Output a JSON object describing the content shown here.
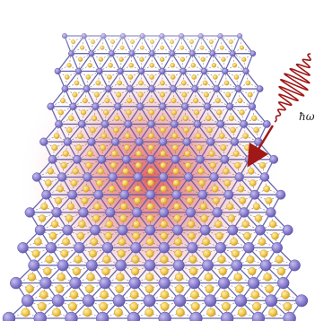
{
  "diagram": {
    "photon_label": "ħω",
    "lattice": {
      "rows": 17,
      "cols": 10
    },
    "colors": {
      "heavy_atom": "#8a7fcf",
      "heavy_atom_edge": "#5d55a8",
      "light_atom": "#f0c84a",
      "light_atom_edge": "#c9962a",
      "bond_solid": "#5a58a8",
      "bond_dashed": "#5a5f84",
      "glow": "#e26a6a",
      "wave": "#a01818"
    },
    "icons": {
      "photon": "wavy-arrow-icon"
    }
  }
}
